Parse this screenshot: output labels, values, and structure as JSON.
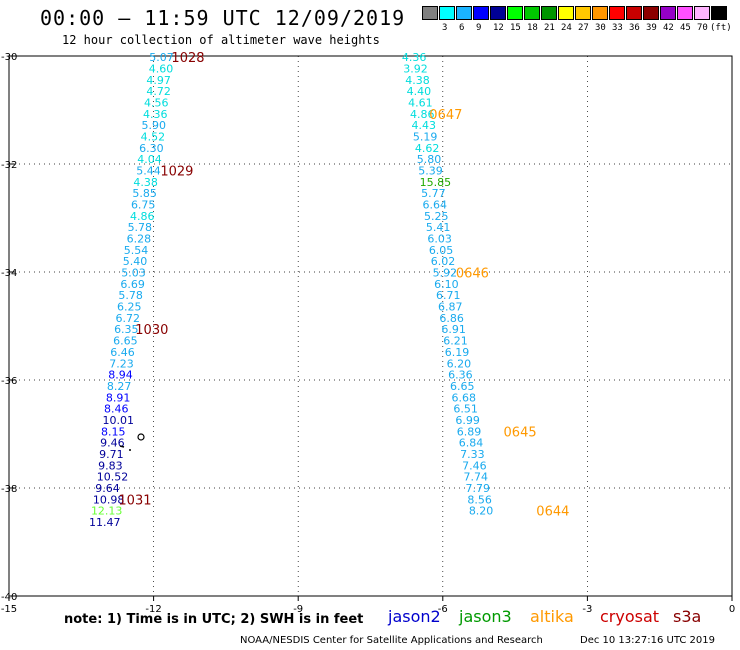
{
  "header": {
    "title": "00:00 – 11:59 UTC 12/09/2019",
    "subtitle": "12 hour collection of altimeter wave heights"
  },
  "legend": {
    "unit": "(ft)",
    "swatches": [
      {
        "color": "#808080",
        "label": ""
      },
      {
        "color": "#00ffff",
        "label": "3"
      },
      {
        "color": "#1ab4ff",
        "label": "6"
      },
      {
        "color": "#0000ff",
        "label": "9"
      },
      {
        "color": "#000096",
        "label": "12"
      },
      {
        "color": "#00ff00",
        "label": "15"
      },
      {
        "color": "#00c800",
        "label": "18"
      },
      {
        "color": "#009600",
        "label": "21"
      },
      {
        "color": "#ffff00",
        "label": "24"
      },
      {
        "color": "#ffc800",
        "label": "27"
      },
      {
        "color": "#ff9600",
        "label": "30"
      },
      {
        "color": "#ff0000",
        "label": "33"
      },
      {
        "color": "#c80000",
        "label": "36"
      },
      {
        "color": "#8c0000",
        "label": "39"
      },
      {
        "color": "#9600c8",
        "label": "42"
      },
      {
        "color": "#ff50ff",
        "label": "45"
      },
      {
        "color": "#ffb4ff",
        "label": "70"
      },
      {
        "color": "#000000",
        "label": ""
      }
    ]
  },
  "footer": {
    "note": "note: 1) Time is in UTC; 2) SWH is in feet",
    "satellites": [
      {
        "name": "jason2",
        "color": "#0000cc"
      },
      {
        "name": "jason3",
        "color": "#009900"
      },
      {
        "name": "altika",
        "color": "#ff9900"
      },
      {
        "name": "cryosat",
        "color": "#cc0000"
      },
      {
        "name": "s3a",
        "color": "#880000"
      }
    ],
    "credit": "NOAA/NESDIS Center for Satellite Applications and Research",
    "timestamp": "Dec 10 13:27:16 UTC 2019"
  },
  "chart_data": {
    "type": "scatter",
    "xlim": [
      -15,
      0
    ],
    "ylim": [
      -40,
      -30
    ],
    "xticks": [
      "-15",
      "-12",
      "-9",
      "-6",
      "-3",
      "0"
    ],
    "yticks": [
      "-30",
      "-32",
      "-34",
      "-36",
      "-38",
      "-40"
    ],
    "grid": "dotted",
    "colors": {
      "cyan": "#00dddd",
      "lightblue": "#19aaee",
      "blue": "#0000ff",
      "navy": "#000099",
      "green": "#22aa00",
      "lime": "#66ff33",
      "orange": "#ff9900",
      "maroon": "#880000"
    },
    "tracks": [
      {
        "name": "western track",
        "points": [
          {
            "lon": -12.09,
            "lat": -30.02,
            "text": "5.07",
            "color": "lightblue"
          },
          {
            "lon": -12.1,
            "lat": -30.23,
            "text": "4.60",
            "color": "cyan"
          },
          {
            "lon": -12.15,
            "lat": -30.44,
            "text": "4.97",
            "color": "cyan"
          },
          {
            "lon": -12.15,
            "lat": -30.65,
            "text": "4.72",
            "color": "cyan"
          },
          {
            "lon": -12.2,
            "lat": -30.86,
            "text": "4.56",
            "color": "cyan"
          },
          {
            "lon": -12.22,
            "lat": -31.07,
            "text": "4.36",
            "color": "cyan"
          },
          {
            "lon": -12.25,
            "lat": -31.28,
            "text": "5.90",
            "color": "lightblue"
          },
          {
            "lon": -12.27,
            "lat": -31.49,
            "text": "4.52",
            "color": "cyan"
          },
          {
            "lon": -12.3,
            "lat": -31.7,
            "text": "6.30",
            "color": "lightblue"
          },
          {
            "lon": -12.34,
            "lat": -31.91,
            "text": "4.04",
            "color": "cyan"
          },
          {
            "lon": -12.36,
            "lat": -32.12,
            "text": "5.44",
            "color": "lightblue"
          },
          {
            "lon": -12.42,
            "lat": -32.33,
            "text": "4.38",
            "color": "cyan"
          },
          {
            "lon": -12.44,
            "lat": -32.54,
            "text": "5.85",
            "color": "lightblue"
          },
          {
            "lon": -12.47,
            "lat": -32.75,
            "text": "6.75",
            "color": "lightblue"
          },
          {
            "lon": -12.49,
            "lat": -32.96,
            "text": "4.86",
            "color": "cyan"
          },
          {
            "lon": -12.54,
            "lat": -33.17,
            "text": "5.78",
            "color": "lightblue"
          },
          {
            "lon": -12.56,
            "lat": -33.38,
            "text": "6.28",
            "color": "lightblue"
          },
          {
            "lon": -12.62,
            "lat": -33.59,
            "text": "5.54",
            "color": "lightblue"
          },
          {
            "lon": -12.64,
            "lat": -33.8,
            "text": "5.40",
            "color": "lightblue"
          },
          {
            "lon": -12.67,
            "lat": -34.01,
            "text": "5.03",
            "color": "lightblue"
          },
          {
            "lon": -12.69,
            "lat": -34.22,
            "text": "6.69",
            "color": "lightblue"
          },
          {
            "lon": -12.73,
            "lat": -34.43,
            "text": "5.78",
            "color": "lightblue"
          },
          {
            "lon": -12.76,
            "lat": -34.64,
            "text": "6.25",
            "color": "lightblue"
          },
          {
            "lon": -12.79,
            "lat": -34.85,
            "text": "6.72",
            "color": "lightblue"
          },
          {
            "lon": -12.82,
            "lat": -35.06,
            "text": "6.35",
            "color": "lightblue"
          },
          {
            "lon": -12.84,
            "lat": -35.27,
            "text": "6.65",
            "color": "lightblue"
          },
          {
            "lon": -12.9,
            "lat": -35.48,
            "text": "6.46",
            "color": "lightblue"
          },
          {
            "lon": -12.92,
            "lat": -35.69,
            "text": "7.23",
            "color": "lightblue"
          },
          {
            "lon": -12.94,
            "lat": -35.9,
            "text": "8.94",
            "color": "blue"
          },
          {
            "lon": -12.97,
            "lat": -36.11,
            "text": "8.27",
            "color": "lightblue"
          },
          {
            "lon": -12.99,
            "lat": -36.32,
            "text": "8.91",
            "color": "blue"
          },
          {
            "lon": -13.03,
            "lat": -36.53,
            "text": "8.46",
            "color": "blue"
          },
          {
            "lon": -13.06,
            "lat": -36.74,
            "text": "10.01",
            "color": "navy"
          },
          {
            "lon": -13.09,
            "lat": -36.95,
            "text": "8.15",
            "color": "blue"
          },
          {
            "lon": -13.11,
            "lat": -37.16,
            "text": "9.46",
            "color": "navy"
          },
          {
            "lon": -13.13,
            "lat": -37.37,
            "text": "9.71",
            "color": "navy"
          },
          {
            "lon": -13.15,
            "lat": -37.58,
            "text": "9.83",
            "color": "navy"
          },
          {
            "lon": -13.18,
            "lat": -37.79,
            "text": "10.52",
            "color": "navy"
          },
          {
            "lon": -13.21,
            "lat": -38.0,
            "text": "9.64",
            "color": "navy"
          },
          {
            "lon": -13.26,
            "lat": -38.21,
            "text": "10.98",
            "color": "navy"
          },
          {
            "lon": -13.3,
            "lat": -38.42,
            "text": "12.13",
            "color": "lime"
          },
          {
            "lon": -13.34,
            "lat": -38.63,
            "text": "11.47",
            "color": "navy"
          }
        ]
      },
      {
        "name": "eastern track",
        "points": [
          {
            "lon": -6.85,
            "lat": -30.02,
            "text": "4.36",
            "color": "cyan"
          },
          {
            "lon": -6.82,
            "lat": -30.23,
            "text": "3.92",
            "color": "cyan"
          },
          {
            "lon": -6.78,
            "lat": -30.44,
            "text": "4.38",
            "color": "cyan"
          },
          {
            "lon": -6.75,
            "lat": -30.65,
            "text": "4.40",
            "color": "cyan"
          },
          {
            "lon": -6.72,
            "lat": -30.86,
            "text": "4.61",
            "color": "cyan"
          },
          {
            "lon": -6.68,
            "lat": -31.07,
            "text": "4.86",
            "color": "cyan"
          },
          {
            "lon": -6.65,
            "lat": -31.28,
            "text": "4.43",
            "color": "cyan"
          },
          {
            "lon": -6.62,
            "lat": -31.49,
            "text": "5.19",
            "color": "lightblue"
          },
          {
            "lon": -6.58,
            "lat": -31.7,
            "text": "4.62",
            "color": "cyan"
          },
          {
            "lon": -6.54,
            "lat": -31.91,
            "text": "5.80",
            "color": "lightblue"
          },
          {
            "lon": -6.51,
            "lat": -32.12,
            "text": "5.39",
            "color": "lightblue"
          },
          {
            "lon": -6.48,
            "lat": -32.33,
            "text": "15.85",
            "color": "green"
          },
          {
            "lon": -6.45,
            "lat": -32.54,
            "text": "5.77",
            "color": "lightblue"
          },
          {
            "lon": -6.42,
            "lat": -32.75,
            "text": "6.64",
            "color": "lightblue"
          },
          {
            "lon": -6.39,
            "lat": -32.96,
            "text": "5.25",
            "color": "lightblue"
          },
          {
            "lon": -6.35,
            "lat": -33.17,
            "text": "5.41",
            "color": "lightblue"
          },
          {
            "lon": -6.32,
            "lat": -33.38,
            "text": "6.03",
            "color": "lightblue"
          },
          {
            "lon": -6.29,
            "lat": -33.59,
            "text": "6.05",
            "color": "lightblue"
          },
          {
            "lon": -6.25,
            "lat": -33.8,
            "text": "6.02",
            "color": "lightblue"
          },
          {
            "lon": -6.21,
            "lat": -34.01,
            "text": "5.92",
            "color": "lightblue"
          },
          {
            "lon": -6.18,
            "lat": -34.22,
            "text": "6.10",
            "color": "lightblue"
          },
          {
            "lon": -6.14,
            "lat": -34.43,
            "text": "6.71",
            "color": "lightblue"
          },
          {
            "lon": -6.1,
            "lat": -34.64,
            "text": "6.87",
            "color": "lightblue"
          },
          {
            "lon": -6.07,
            "lat": -34.85,
            "text": "6.86",
            "color": "lightblue"
          },
          {
            "lon": -6.03,
            "lat": -35.06,
            "text": "6.91",
            "color": "lightblue"
          },
          {
            "lon": -5.99,
            "lat": -35.27,
            "text": "6.21",
            "color": "lightblue"
          },
          {
            "lon": -5.96,
            "lat": -35.48,
            "text": "6.19",
            "color": "lightblue"
          },
          {
            "lon": -5.92,
            "lat": -35.69,
            "text": "6.20",
            "color": "lightblue"
          },
          {
            "lon": -5.89,
            "lat": -35.9,
            "text": "6.36",
            "color": "lightblue"
          },
          {
            "lon": -5.85,
            "lat": -36.11,
            "text": "6.65",
            "color": "lightblue"
          },
          {
            "lon": -5.82,
            "lat": -36.32,
            "text": "6.68",
            "color": "lightblue"
          },
          {
            "lon": -5.78,
            "lat": -36.53,
            "text": "6.51",
            "color": "lightblue"
          },
          {
            "lon": -5.74,
            "lat": -36.74,
            "text": "6.99",
            "color": "lightblue"
          },
          {
            "lon": -5.71,
            "lat": -36.95,
            "text": "6.89",
            "color": "lightblue"
          },
          {
            "lon": -5.67,
            "lat": -37.16,
            "text": "6.84",
            "color": "lightblue"
          },
          {
            "lon": -5.64,
            "lat": -37.37,
            "text": "7.33",
            "color": "lightblue"
          },
          {
            "lon": -5.6,
            "lat": -37.58,
            "text": "7.46",
            "color": "lightblue"
          },
          {
            "lon": -5.57,
            "lat": -37.79,
            "text": "7.74",
            "color": "lightblue"
          },
          {
            "lon": -5.53,
            "lat": -38.0,
            "text": "7.79",
            "color": "lightblue"
          },
          {
            "lon": -5.49,
            "lat": -38.21,
            "text": "8.56",
            "color": "lightblue"
          },
          {
            "lon": -5.46,
            "lat": -38.42,
            "text": "8.20",
            "color": "lightblue"
          }
        ]
      }
    ],
    "time_labels": [
      {
        "lon": -11.63,
        "lat": -30.02,
        "text": "1028",
        "color": "maroon"
      },
      {
        "lon": -11.86,
        "lat": -32.12,
        "text": "1029",
        "color": "maroon"
      },
      {
        "lon": -12.38,
        "lat": -35.06,
        "text": "1030",
        "color": "maroon"
      },
      {
        "lon": -12.73,
        "lat": -38.21,
        "text": "1031",
        "color": "maroon"
      },
      {
        "lon": -6.28,
        "lat": -31.07,
        "text": "0647",
        "color": "orange"
      },
      {
        "lon": -5.73,
        "lat": -34.01,
        "text": "0646",
        "color": "orange"
      },
      {
        "lon": -4.74,
        "lat": -36.95,
        "text": "0645",
        "color": "orange"
      },
      {
        "lon": -4.06,
        "lat": -38.42,
        "text": "0644",
        "color": "orange"
      }
    ]
  }
}
